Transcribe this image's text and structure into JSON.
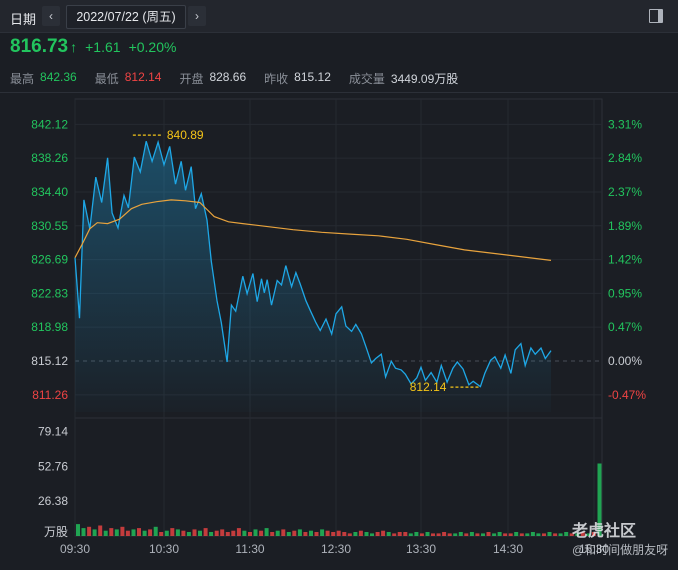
{
  "header": {
    "date_label": "日期",
    "prev_icon": "chevron-left-icon",
    "prev_glyph": "‹",
    "date_value": "2022/07/22 (周五)",
    "next_icon": "chevron-right-icon",
    "next_glyph": "›",
    "panel_icon": "panel-toggle-icon"
  },
  "quote": {
    "price": "816.73",
    "arrow": "↑",
    "change": "+1.61",
    "change_pct": "+0.20%",
    "color_up": "#22c55e",
    "color_down": "#ef4444"
  },
  "stats": {
    "high_label": "最高",
    "high_value": "842.36",
    "low_label": "最低",
    "low_value": "812.14",
    "open_label": "开盘",
    "open_value": "828.66",
    "prev_close_label": "昨收",
    "prev_close_value": "815.12",
    "volume_label": "成交量",
    "volume_value": "3449.09万股"
  },
  "chart_data": {
    "type": "line",
    "prev_close": 815.12,
    "ylim": [
      809.3,
      844.1
    ],
    "y_ticks_left": [
      "842.12",
      "838.26",
      "834.40",
      "830.55",
      "826.69",
      "822.83",
      "818.98",
      "815.12",
      "811.26"
    ],
    "y_ticks_right": [
      "3.31%",
      "2.84%",
      "2.37%",
      "1.89%",
      "1.42%",
      "0.95%",
      "0.47%",
      "0.00%",
      "-0.47%"
    ],
    "x_ticks": [
      "09:30",
      "10:30",
      "11:30",
      "12:30",
      "13:30",
      "14:30",
      "15:30"
    ],
    "annotations": [
      {
        "label": "840.89",
        "value": 840.89,
        "time": "10:09"
      },
      {
        "label": "812.14",
        "value": 812.14,
        "time": "14:11"
      }
    ],
    "series": [
      {
        "color": "#1ea7e6",
        "points": [
          [
            "09:30",
            826.9
          ],
          [
            "09:33",
            820.0
          ],
          [
            "09:36",
            833.5
          ],
          [
            "09:40",
            830.2
          ],
          [
            "09:44",
            836.1
          ],
          [
            "09:48",
            833.2
          ],
          [
            "09:52",
            838.3
          ],
          [
            "09:55",
            832.0
          ],
          [
            "09:59",
            830.3
          ],
          [
            "10:03",
            834.0
          ],
          [
            "10:06",
            832.6
          ],
          [
            "10:10",
            838.4
          ],
          [
            "10:14",
            836.7
          ],
          [
            "10:18",
            840.2
          ],
          [
            "10:22",
            837.9
          ],
          [
            "10:26",
            840.1
          ],
          [
            "10:30",
            837.5
          ],
          [
            "10:34",
            839.6
          ],
          [
            "10:38",
            835.3
          ],
          [
            "10:42",
            837.9
          ],
          [
            "10:45",
            834.6
          ],
          [
            "10:49",
            837.3
          ],
          [
            "10:52",
            832.5
          ],
          [
            "10:56",
            834.2
          ],
          [
            "11:00",
            831.2
          ],
          [
            "11:03",
            826.5
          ],
          [
            "11:07",
            822.0
          ],
          [
            "11:10",
            819.5
          ],
          [
            "11:14",
            815.0
          ],
          [
            "11:17",
            821.5
          ],
          [
            "11:20",
            820.8
          ],
          [
            "11:25",
            824.8
          ],
          [
            "11:28",
            822.8
          ],
          [
            "11:32",
            825.1
          ],
          [
            "11:35",
            821.9
          ],
          [
            "11:38",
            824.5
          ],
          [
            "11:40",
            822.9
          ],
          [
            "11:42",
            824.4
          ],
          [
            "11:45",
            821.5
          ],
          [
            "11:49",
            824.3
          ],
          [
            "11:52",
            823.8
          ],
          [
            "11:55",
            826.0
          ],
          [
            "11:59",
            823.6
          ],
          [
            "12:02",
            825.2
          ],
          [
            "12:05",
            823.9
          ],
          [
            "12:09",
            822.0
          ],
          [
            "12:12",
            820.9
          ],
          [
            "12:16",
            819.5
          ],
          [
            "12:19",
            818.6
          ],
          [
            "12:23",
            819.9
          ],
          [
            "12:27",
            818.2
          ],
          [
            "12:30",
            820.5
          ],
          [
            "12:34",
            821.3
          ],
          [
            "12:37",
            819.1
          ],
          [
            "12:41",
            818.5
          ],
          [
            "12:44",
            819.3
          ],
          [
            "12:48",
            818.2
          ],
          [
            "12:51",
            816.8
          ],
          [
            "12:55",
            814.9
          ],
          [
            "12:58",
            815.4
          ],
          [
            "13:02",
            815.9
          ],
          [
            "13:05",
            813.3
          ],
          [
            "13:09",
            815.1
          ],
          [
            "13:12",
            814.3
          ],
          [
            "13:16",
            814.1
          ],
          [
            "13:19",
            813.6
          ],
          [
            "13:23",
            812.5
          ],
          [
            "13:27",
            813.2
          ],
          [
            "13:30",
            814.4
          ],
          [
            "13:33",
            812.9
          ],
          [
            "13:37",
            813.8
          ],
          [
            "13:41",
            812.7
          ],
          [
            "13:44",
            814.6
          ],
          [
            "13:48",
            812.7
          ],
          [
            "13:52",
            814.3
          ],
          [
            "13:55",
            815.0
          ],
          [
            "13:59",
            814.2
          ],
          [
            "14:03",
            812.4
          ],
          [
            "14:06",
            812.8
          ],
          [
            "14:11",
            812.2
          ],
          [
            "14:14",
            813.7
          ],
          [
            "14:18",
            815.2
          ],
          [
            "14:21",
            815.6
          ],
          [
            "14:25",
            814.3
          ],
          [
            "14:28",
            815.8
          ],
          [
            "14:32",
            813.7
          ],
          [
            "14:35",
            816.4
          ],
          [
            "14:39",
            817.1
          ],
          [
            "14:42",
            814.6
          ],
          [
            "14:46",
            816.6
          ],
          [
            "14:49",
            815.9
          ],
          [
            "14:53",
            816.6
          ],
          [
            "14:56",
            815.4
          ],
          [
            "15:00",
            816.3
          ]
        ]
      },
      {
        "color": "#e8a33d",
        "points": [
          [
            "09:30",
            826.9
          ],
          [
            "09:35",
            828.5
          ],
          [
            "09:40",
            830.2
          ],
          [
            "09:45",
            830.9
          ],
          [
            "09:52",
            830.8
          ],
          [
            "10:00",
            831.3
          ],
          [
            "10:08",
            832.5
          ],
          [
            "10:15",
            833.0
          ],
          [
            "10:25",
            833.3
          ],
          [
            "10:35",
            833.5
          ],
          [
            "10:45",
            833.4
          ],
          [
            "10:55",
            833.2
          ],
          [
            "11:00",
            832.4
          ],
          [
            "11:05",
            831.6
          ],
          [
            "11:15",
            831.0
          ],
          [
            "11:25",
            830.8
          ],
          [
            "11:40",
            830.5
          ],
          [
            "12:00",
            830.1
          ],
          [
            "12:20",
            829.8
          ],
          [
            "12:40",
            829.6
          ],
          [
            "13:00",
            829.4
          ],
          [
            "13:20",
            829.0
          ],
          [
            "13:40",
            828.4
          ],
          [
            "14:00",
            827.8
          ],
          [
            "14:20",
            827.4
          ],
          [
            "14:40",
            827.0
          ],
          [
            "15:00",
            826.6
          ]
        ]
      }
    ],
    "volume": {
      "y_ticks": [
        "79.14",
        "52.76",
        "26.38"
      ],
      "unit": "万股",
      "ylim": [
        0,
        88
      ],
      "color_up": "#22c55e",
      "color_down": "#ef4444",
      "bars": [
        9,
        6,
        7,
        5,
        8,
        4,
        6,
        5,
        7,
        4,
        5,
        6,
        4,
        5,
        7,
        3,
        4,
        6,
        5,
        4,
        3,
        5,
        4,
        6,
        3,
        4,
        5,
        3,
        4,
        6,
        4,
        3,
        5,
        4,
        6,
        3,
        4,
        5,
        3,
        4,
        5,
        3,
        4,
        3,
        5,
        4,
        3,
        4,
        3,
        2,
        3,
        4,
        3,
        2,
        3,
        4,
        3,
        2,
        3,
        3,
        2,
        3,
        2,
        3,
        2,
        2,
        3,
        2,
        2,
        3,
        2,
        3,
        2,
        2,
        3,
        2,
        3,
        2,
        2,
        3,
        2,
        2,
        3,
        2,
        2,
        3,
        2,
        2,
        3,
        2,
        2,
        3,
        2,
        3,
        55
      ]
    }
  },
  "watermark": {
    "brand": "老虎社区",
    "user": "@和时间做朋友呀"
  }
}
